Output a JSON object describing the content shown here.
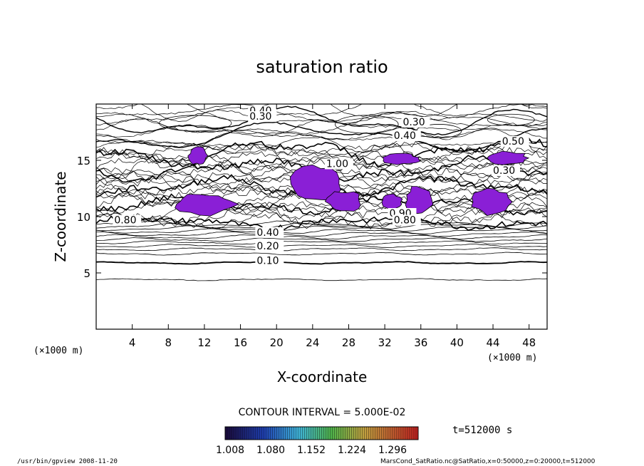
{
  "chart_data": {
    "type": "contour",
    "title": "saturation ratio",
    "xlabel": "X-coordinate",
    "ylabel": "Z-coordinate",
    "x_unit": "(×1000 m)",
    "xlim": [
      0,
      50
    ],
    "ylim": [
      0,
      20
    ],
    "x_ticks": [
      4,
      8,
      12,
      16,
      20,
      24,
      28,
      32,
      36,
      40,
      44,
      48
    ],
    "y_ticks": [
      5,
      10,
      15
    ],
    "grid": false,
    "contour_interval_text": "CONTOUR INTERVAL = 5.000E-02",
    "contour_labels": [
      {
        "text": "0.40",
        "x": 17.0,
        "y": 19.1
      },
      {
        "text": "0.30",
        "x": 17.0,
        "y": 18.6
      },
      {
        "text": "0.30",
        "x": 34.0,
        "y": 18.1
      },
      {
        "text": "0.40",
        "x": 33.0,
        "y": 16.9
      },
      {
        "text": "0.50",
        "x": 45.0,
        "y": 16.4
      },
      {
        "text": "1.00",
        "x": 25.5,
        "y": 14.4
      },
      {
        "text": "0.30",
        "x": 44.0,
        "y": 13.8
      },
      {
        "text": "0.90",
        "x": 32.5,
        "y": 10.0
      },
      {
        "text": "0.80",
        "x": 33.0,
        "y": 9.4
      },
      {
        "text": "0.40",
        "x": 17.8,
        "y": 8.3
      },
      {
        "text": "0.20",
        "x": 17.8,
        "y": 7.1
      },
      {
        "text": "0.10",
        "x": 17.8,
        "y": 5.8
      },
      {
        "text": "0.80",
        "x": 2.0,
        "y": 9.4
      }
    ],
    "shaded_levels": {
      "colormap": "rainbow (dark blue to red)",
      "tick_labels": [
        "1.008",
        "1.080",
        "1.152",
        "1.224",
        "1.296"
      ],
      "range": [
        1.008,
        1.3
      ],
      "regions_color": "#8a1fd6",
      "regions": [
        {
          "x0": 10.2,
          "x1": 12.4,
          "z0": 14.6,
          "z1": 16.2
        },
        {
          "x0": 8.4,
          "x1": 15.6,
          "z0": 10.1,
          "z1": 12.1
        },
        {
          "x0": 21.5,
          "x1": 27.5,
          "z0": 11.2,
          "z1": 14.6
        },
        {
          "x0": 25.5,
          "x1": 29.5,
          "z0": 10.4,
          "z1": 12.3
        },
        {
          "x0": 34.2,
          "x1": 37.5,
          "z0": 10.2,
          "z1": 12.8
        },
        {
          "x0": 31.5,
          "x1": 34.0,
          "z0": 10.6,
          "z1": 12.0
        },
        {
          "x0": 41.5,
          "x1": 46.0,
          "z0": 10.1,
          "z1": 12.5
        },
        {
          "x0": 43.0,
          "x1": 48.0,
          "z0": 14.6,
          "z1": 15.8
        },
        {
          "x0": 31.5,
          "x1": 36.0,
          "z0": 14.6,
          "z1": 15.6
        }
      ]
    }
  },
  "footer": {
    "time_label": "t=512000 s",
    "left_text": "/usr/bin/gpview  2008-11-20",
    "right_text": "MarsCond_SatRatio.nc@SatRatio,x=0:50000,z=0:20000,t=512000"
  }
}
